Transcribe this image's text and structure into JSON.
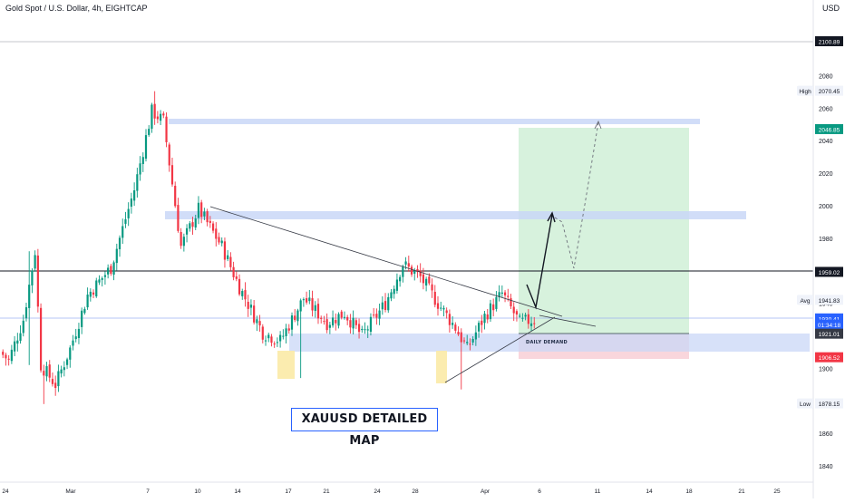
{
  "header": {
    "symbol": "Gold Spot / U.S. Dollar, 4h, EIGHTCAP",
    "currency": "USD"
  },
  "annotations": {
    "map_title": "XAUUSD DETAILED MAP",
    "demand_label": "DAILY DEMAND"
  },
  "price_badges": [
    {
      "text": "2100.89",
      "value": 2100.89,
      "style": "black"
    },
    {
      "text": "2046.85",
      "value": 2046.85,
      "style": "green"
    },
    {
      "text": "1959.02",
      "value": 1959.02,
      "style": "black"
    },
    {
      "text": "1930.41",
      "value": 1930.41,
      "style": "blue"
    },
    {
      "text": "01:34:18",
      "value": 1926.6,
      "style": "blue"
    },
    {
      "text": "1921.01",
      "value": 1921.01,
      "style": "dark"
    },
    {
      "text": "1906.52",
      "value": 1906.52,
      "style": "red"
    }
  ],
  "side_labels": [
    {
      "label": "High",
      "text": "2070.45",
      "value": 2070.45
    },
    {
      "label": "Avg",
      "text": "1941.83",
      "value": 1941.83
    },
    {
      "label": "Low",
      "text": "1878.15",
      "value": 1878.15
    }
  ],
  "colors": {
    "bull": "#089981",
    "bear": "#f23645",
    "zone": "#c9d7f7",
    "target": "#d3f1d9",
    "stop": "#f8d2d8",
    "highlight": "#fbeaa6",
    "badge_green": "#089981",
    "badge_blue": "#2962ff",
    "badge_red": "#f23645",
    "badge_dark": "#363a45"
  },
  "chart_data": {
    "type": "candlestick",
    "title": "Gold Spot / U.S. Dollar, 4h, EIGHTCAP",
    "ylim": [
      1830,
      2115
    ],
    "y_ticks": [
      1840,
      1860,
      1880,
      1900,
      1920,
      1940,
      1960,
      1980,
      2000,
      2020,
      2040,
      2060,
      2080
    ],
    "x_ticks": [
      "24",
      "Mar",
      "7",
      "10",
      "14",
      "17",
      "21",
      "24",
      "28",
      "Apr",
      "6",
      "11",
      "14",
      "18",
      "21",
      "25"
    ],
    "pivots": [
      {
        "bar": 0,
        "price": 1910
      },
      {
        "bar": 3,
        "price": 1905
      },
      {
        "bar": 8,
        "price": 1930
      },
      {
        "bar": 12,
        "price": 1972
      },
      {
        "bar": 14,
        "price": 1902
      },
      {
        "bar": 19,
        "price": 1890
      },
      {
        "bar": 24,
        "price": 1912
      },
      {
        "bar": 30,
        "price": 1945
      },
      {
        "bar": 38,
        "price": 1962
      },
      {
        "bar": 46,
        "price": 2010
      },
      {
        "bar": 52,
        "price": 2058
      },
      {
        "bar": 56,
        "price": 2052
      },
      {
        "bar": 62,
        "price": 1975
      },
      {
        "bar": 68,
        "price": 1998
      },
      {
        "bar": 76,
        "price": 1975
      },
      {
        "bar": 82,
        "price": 1950
      },
      {
        "bar": 90,
        "price": 1922
      },
      {
        "bar": 96,
        "price": 1917
      },
      {
        "bar": 104,
        "price": 1943
      },
      {
        "bar": 112,
        "price": 1928
      },
      {
        "bar": 118,
        "price": 1934
      },
      {
        "bar": 124,
        "price": 1920
      },
      {
        "bar": 132,
        "price": 1940
      },
      {
        "bar": 138,
        "price": 1964
      },
      {
        "bar": 144,
        "price": 1956
      },
      {
        "bar": 150,
        "price": 1940
      },
      {
        "bar": 156,
        "price": 1925
      },
      {
        "bar": 160,
        "price": 1912
      },
      {
        "bar": 166,
        "price": 1932
      },
      {
        "bar": 172,
        "price": 1946
      },
      {
        "bar": 178,
        "price": 1928
      },
      {
        "bar": 183,
        "price": 1930
      }
    ],
    "spikes": [
      {
        "bar": 10,
        "high": 1972,
        "low": 1902
      },
      {
        "bar": 15,
        "low": 1878
      },
      {
        "bar": 53,
        "high": 2070.45
      },
      {
        "bar": 103,
        "low": 1894
      },
      {
        "bar": 158,
        "low": 1887
      }
    ]
  }
}
